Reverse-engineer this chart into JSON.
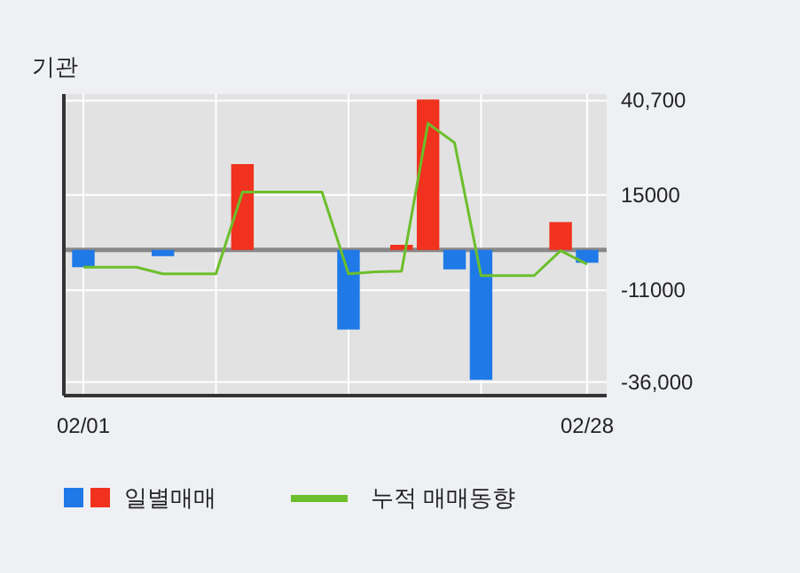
{
  "chart_data": {
    "type": "bar",
    "title": "기관",
    "categories": [
      "02/01",
      null,
      null,
      null,
      null,
      null,
      null,
      null,
      null,
      null,
      null,
      null,
      null,
      null,
      null,
      null,
      null,
      null,
      null,
      "02/28"
    ],
    "series": [
      {
        "name": "일별매매",
        "values": [
          -4700,
          null,
          null,
          -1700,
          null,
          null,
          23400,
          null,
          null,
          null,
          -21700,
          null,
          1400,
          41000,
          -5300,
          -35400,
          null,
          null,
          7600,
          -3500
        ],
        "colors": [
          "#1f7ae8",
          null,
          null,
          "#1f7ae8",
          null,
          null,
          "#f0321e",
          null,
          null,
          null,
          "#1f7ae8",
          null,
          "#f0321e",
          "#f0321e",
          "#1f7ae8",
          "#1f7ae8",
          null,
          null,
          "#f0321e",
          "#1f7ae8"
        ]
      },
      {
        "name": "누적 매매동향",
        "type": "line",
        "color": "#6cbf2b",
        "values": [
          -4700,
          -4700,
          -4700,
          -6500,
          -6500,
          -6500,
          15800,
          15800,
          15800,
          15800,
          -6500,
          -6000,
          -5800,
          34500,
          29200,
          -7000,
          -7000,
          -7000,
          -200,
          -3900
        ]
      }
    ],
    "ylim": [
      -39700,
      42500
    ],
    "yticks": [
      {
        "value": 40700,
        "label": "40,700"
      },
      15000,
      -11000,
      {
        "value": -36000,
        "label": "-36,000"
      }
    ],
    "ref_lines": [
      {
        "axis": "y",
        "value": 0,
        "color": "#888888"
      }
    ],
    "grid": true,
    "legend": "bottom"
  }
}
